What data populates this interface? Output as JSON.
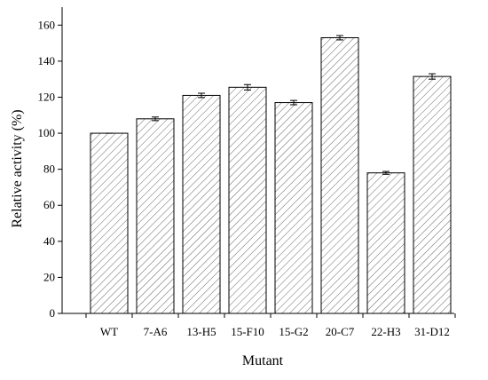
{
  "chart_data": {
    "type": "bar",
    "categories": [
      "WT",
      "7-A6",
      "13-H5",
      "15-F10",
      "15-G2",
      "20-C7",
      "22-H3",
      "31-D12"
    ],
    "values": [
      100,
      108,
      121,
      125.5,
      117,
      153,
      78,
      131.5
    ],
    "errors": [
      0,
      1,
      1.2,
      1.5,
      1.2,
      1.2,
      0.8,
      1.5
    ],
    "color": "#ffffff",
    "xlabel": "Mutant",
    "ylabel": "Relative activity (%)",
    "ylim": [
      0,
      170
    ],
    "yticks": [
      0,
      20,
      40,
      60,
      80,
      100,
      120,
      140,
      160
    ]
  }
}
